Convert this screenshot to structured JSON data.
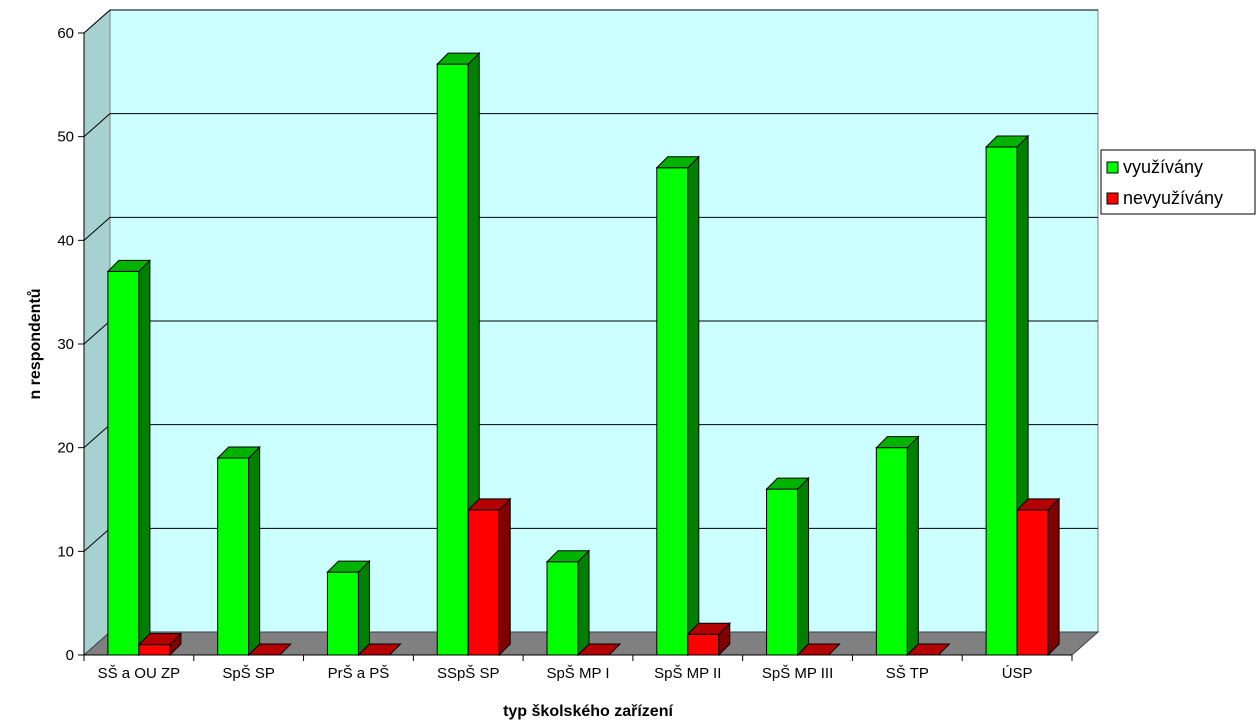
{
  "chart_data": {
    "type": "bar",
    "style": "3d-clustered-column",
    "title": "",
    "xlabel": "typ školského zařízení",
    "ylabel": "n respondentů",
    "ylim": [
      0,
      60
    ],
    "yticks": [
      0,
      10,
      20,
      30,
      40,
      50,
      60
    ],
    "grid": true,
    "legend_position": "right",
    "categories": [
      "SŠ a OU ZP",
      "SpŠ SP",
      "PrŠ a PŠ",
      "SSpŠ SP",
      "SpŠ MP I",
      "SpŠ MP II",
      "SpŠ MP III",
      "SŠ TP",
      "ÚSP"
    ],
    "series": [
      {
        "name": "využívány",
        "values": [
          37,
          19,
          8,
          57,
          9,
          47,
          16,
          20,
          49
        ],
        "color": "#00ff00"
      },
      {
        "name": "nevyužívány",
        "values": [
          1,
          0,
          0,
          14,
          0,
          2,
          0,
          0,
          14
        ],
        "color": "#ff0000"
      }
    ],
    "colors": {
      "plot_background": "#ccffff",
      "gridline": "#000000"
    }
  }
}
